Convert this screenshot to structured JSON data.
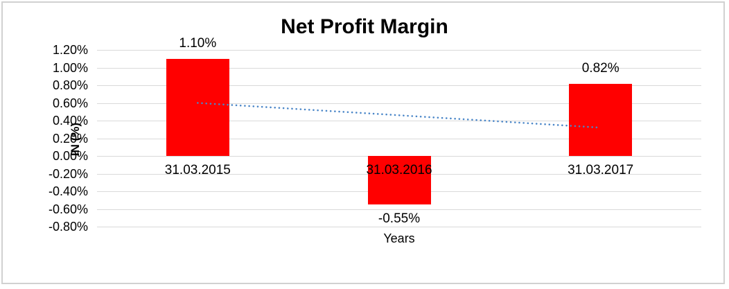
{
  "chart_data": {
    "type": "bar",
    "title": "Net Profit Margin",
    "xlabel": "Years",
    "ylabel": "IN (%)",
    "categories": [
      "31.03.2015",
      "31.03.2016",
      "31.03.2017"
    ],
    "values": [
      1.1,
      -0.55,
      0.82
    ],
    "data_labels": [
      "1.10%",
      "-0.55%",
      "0.82%"
    ],
    "ylim": [
      -0.8,
      1.2
    ],
    "ytick_step": 0.2,
    "ytick_labels": [
      "1.20%",
      "1.00%",
      "0.80%",
      "0.60%",
      "0.40%",
      "0.20%",
      "0.00%",
      "-0.20%",
      "-0.40%",
      "-0.60%",
      "-0.80%"
    ],
    "grid": true,
    "legend": "none",
    "bar_color": "#ff0000",
    "gridline_color": "#d9d9d9",
    "trendline": {
      "type": "linear",
      "style": "dotted",
      "color": "#4a86c8",
      "y_start": 0.6,
      "y_end": 0.32
    }
  }
}
